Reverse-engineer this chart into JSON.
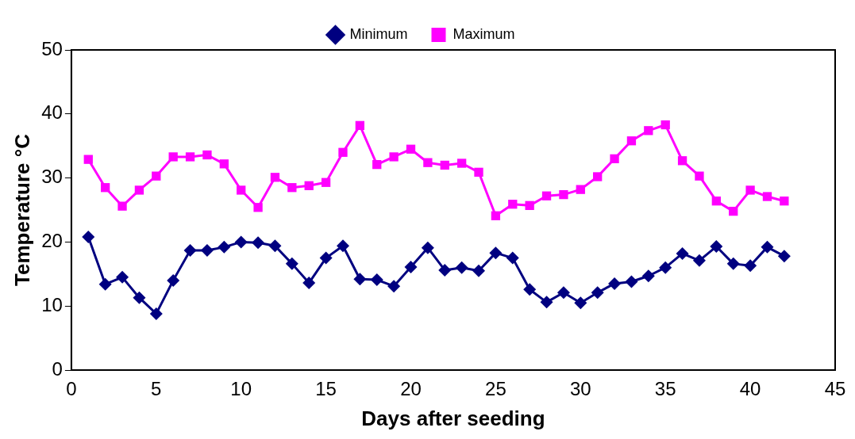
{
  "chart_data": {
    "type": "line",
    "xlabel": "Days after seeding",
    "ylabel": "Temperature °C",
    "x": [
      1,
      2,
      3,
      4,
      5,
      6,
      7,
      8,
      9,
      10,
      11,
      12,
      13,
      14,
      15,
      16,
      17,
      18,
      19,
      20,
      21,
      22,
      23,
      24,
      25,
      26,
      27,
      28,
      29,
      30,
      31,
      32,
      33,
      34,
      35,
      36,
      37,
      38,
      39,
      40,
      41,
      42
    ],
    "series": [
      {
        "name": "Minimum",
        "color": "#000080",
        "marker": "diamond",
        "values": [
          20.8,
          13.4,
          14.5,
          11.3,
          8.8,
          14,
          18.7,
          18.7,
          19.2,
          20,
          19.9,
          19.4,
          16.6,
          13.6,
          17.5,
          19.4,
          14.2,
          14.1,
          13.1,
          16.1,
          19.1,
          15.6,
          16,
          15.5,
          18.3,
          17.5,
          12.6,
          10.6,
          12.1,
          10.5,
          12.1,
          13.5,
          13.8,
          14.7,
          16,
          18.2,
          17.1,
          19.3,
          16.6,
          16.3,
          19.2,
          17.8
        ]
      },
      {
        "name": "Maximum",
        "color": "#ff00ff",
        "marker": "square",
        "values": [
          32.9,
          28.5,
          25.6,
          28.1,
          30.3,
          33.3,
          33.3,
          33.6,
          32.2,
          28.1,
          25.4,
          30.1,
          28.5,
          28.8,
          29.3,
          34,
          38.2,
          32.1,
          33.3,
          34.5,
          32.4,
          32,
          32.3,
          30.9,
          24.1,
          25.9,
          25.7,
          27.2,
          27.4,
          28.2,
          30.2,
          33,
          35.8,
          37.4,
          38.3,
          32.7,
          30.3,
          26.4,
          24.8,
          28.1,
          27.1,
          26.4
        ]
      }
    ],
    "xlim": [
      0,
      45
    ],
    "xticks": [
      0,
      5,
      10,
      15,
      20,
      25,
      30,
      35,
      40,
      45
    ],
    "ylim": [
      0,
      50
    ],
    "yticks": [
      0,
      10,
      20,
      30,
      40,
      50
    ],
    "grid": false,
    "legend": "top",
    "line_style": "solid"
  }
}
